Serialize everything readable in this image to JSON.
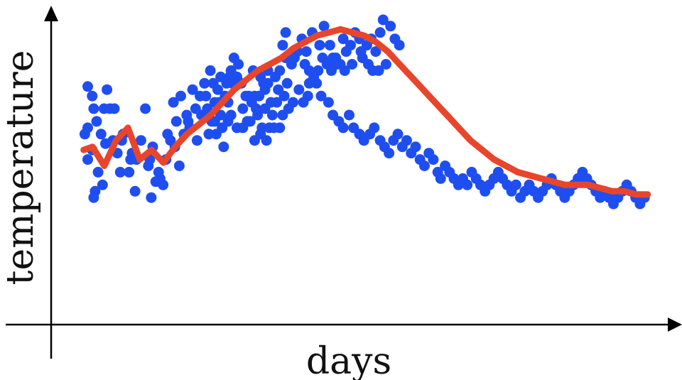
{
  "chart_data": {
    "type": "scatter",
    "xlabel": "days",
    "ylabel": "temperature",
    "grid": false,
    "legend": "none",
    "colors": {
      "points": "#1f4ef0",
      "smoothed": "#e8452b",
      "axes": "#000000"
    },
    "series": [
      {
        "kind": "scatter",
        "points": [
          [
            12.4,
            62
          ],
          [
            11.4,
            60
          ],
          [
            13.9,
            55
          ],
          [
            12.4,
            52
          ],
          [
            14.4,
            68
          ],
          [
            17.9,
            68
          ],
          [
            12.4,
            75
          ],
          [
            13.9,
            72
          ],
          [
            16.9,
            60
          ],
          [
            18.4,
            57
          ],
          [
            15.9,
            48
          ],
          [
            14.9,
            42
          ],
          [
            17.4,
            44
          ],
          [
            14.4,
            40
          ],
          [
            15.4,
            64
          ],
          [
            18.9,
            74
          ],
          [
            19.9,
            68
          ],
          [
            20.9,
            58
          ],
          [
            21.4,
            68
          ],
          [
            22.4,
            54
          ],
          [
            23.4,
            48
          ],
          [
            23.9,
            58
          ],
          [
            26.9,
            52
          ],
          [
            24.4,
            60
          ],
          [
            26.4,
            48
          ],
          [
            27.4,
            54
          ],
          [
            28.4,
            42
          ],
          [
            28.9,
            52
          ],
          [
            30.4,
            58
          ],
          [
            32.9,
            50
          ],
          [
            34.4,
            56
          ],
          [
            36.4,
            48
          ],
          [
            38.9,
            52
          ],
          [
            40.4,
            58
          ],
          [
            43.4,
            50
          ],
          [
            37.9,
            44
          ],
          [
            33.9,
            40
          ],
          [
            33.4,
            52
          ],
          [
            31.9,
            68
          ],
          [
            36.9,
            46
          ],
          [
            35.4,
            45
          ],
          [
            39.4,
            60
          ],
          [
            41.9,
            56
          ],
          [
            46.4,
            64
          ],
          [
            44.9,
            60
          ],
          [
            42.4,
            64
          ],
          [
            41.4,
            70
          ],
          [
            43.9,
            72
          ],
          [
            47.9,
            74
          ],
          [
            46.9,
            62
          ],
          [
            45.9,
            66
          ],
          [
            48.9,
            68
          ],
          [
            49.4,
            58
          ],
          [
            50.9,
            66
          ],
          [
            52.4,
            72
          ],
          [
            54.4,
            64
          ],
          [
            53.4,
            60
          ],
          [
            55.9,
            60
          ],
          [
            57.9,
            62
          ],
          [
            59.9,
            70
          ],
          [
            58.4,
            56
          ],
          [
            56.9,
            70
          ],
          [
            61.4,
            76
          ],
          [
            60.4,
            78
          ],
          [
            58.9,
            72
          ],
          [
            55.4,
            70
          ],
          [
            63.4,
            82
          ],
          [
            64.9,
            68
          ],
          [
            66.9,
            72
          ],
          [
            67.4,
            64
          ],
          [
            69.4,
            68
          ],
          [
            71.9,
            76
          ],
          [
            73.4,
            80
          ],
          [
            68.4,
            80
          ],
          [
            70.4,
            72
          ],
          [
            71.4,
            62
          ],
          [
            74.4,
            70
          ],
          [
            76.9,
            74
          ],
          [
            72.4,
            68
          ],
          [
            75.4,
            62
          ],
          [
            78.9,
            72
          ],
          [
            77.4,
            62
          ],
          [
            79.9,
            76
          ],
          [
            79.4,
            92
          ],
          [
            78.4,
            88
          ],
          [
            82.4,
            84
          ],
          [
            84.9,
            90
          ],
          [
            86.4,
            86
          ],
          [
            88.4,
            92
          ],
          [
            90.9,
            88
          ],
          [
            92.4,
            94
          ],
          [
            94.4,
            88
          ],
          [
            95.4,
            84
          ],
          [
            96.9,
            82
          ],
          [
            98.9,
            90
          ],
          [
            99.9,
            86
          ],
          [
            101.4,
            88
          ],
          [
            102.9,
            92
          ],
          [
            104.4,
            90
          ],
          [
            105.4,
            84
          ],
          [
            106.9,
            88
          ],
          [
            108.4,
            90
          ],
          [
            109.9,
            86
          ],
          [
            111.4,
            92
          ],
          [
            112.4,
            96
          ],
          [
            114.9,
            94
          ],
          [
            116.4,
            90
          ],
          [
            117.9,
            88
          ],
          [
            113.4,
            82
          ],
          [
            110.9,
            80
          ],
          [
            108.9,
            80
          ],
          [
            107.4,
            82
          ],
          [
            104.9,
            86
          ],
          [
            101.9,
            82
          ],
          [
            99.4,
            80
          ],
          [
            97.9,
            82
          ],
          [
            96.4,
            84
          ],
          [
            94.9,
            80
          ],
          [
            93.4,
            82
          ],
          [
            91.9,
            84
          ],
          [
            90.4,
            80
          ],
          [
            88.9,
            78
          ],
          [
            87.4,
            76
          ],
          [
            86.9,
            72
          ],
          [
            85.4,
            70
          ],
          [
            83.9,
            74
          ],
          [
            81.9,
            70
          ],
          [
            80.4,
            68
          ],
          [
            78.4,
            66
          ],
          [
            76.4,
            70
          ],
          [
            74.9,
            66
          ],
          [
            73.9,
            62
          ],
          [
            72.9,
            58
          ],
          [
            70.9,
            60
          ],
          [
            69.9,
            66
          ],
          [
            68.9,
            58
          ],
          [
            67.9,
            70
          ],
          [
            65.9,
            72
          ],
          [
            64.4,
            76
          ],
          [
            62.9,
            78
          ],
          [
            61.9,
            84
          ],
          [
            60.9,
            80
          ],
          [
            59.4,
            76
          ],
          [
            57.4,
            78
          ],
          [
            56.4,
            74
          ],
          [
            54.9,
            76
          ],
          [
            53.9,
            80
          ],
          [
            51.9,
            76
          ],
          [
            50.4,
            72
          ],
          [
            52.9,
            68
          ],
          [
            55.4,
            64
          ],
          [
            57.4,
            66
          ],
          [
            59.9,
            64
          ],
          [
            60.9,
            66
          ],
          [
            62.9,
            62
          ],
          [
            64.9,
            62
          ],
          [
            66.4,
            64
          ],
          [
            68.9,
            72
          ],
          [
            70.9,
            78
          ],
          [
            72.4,
            74
          ],
          [
            73.4,
            76
          ],
          [
            75.9,
            78
          ],
          [
            77.4,
            80
          ],
          [
            79.4,
            84
          ],
          [
            81.4,
            82
          ],
          [
            83.4,
            86
          ],
          [
            85.9,
            82
          ],
          [
            87.4,
            80
          ],
          [
            89.9,
            76
          ],
          [
            91.4,
            72
          ],
          [
            93.9,
            70
          ],
          [
            95.4,
            66
          ],
          [
            97.4,
            64
          ],
          [
            98.9,
            62
          ],
          [
            100.9,
            66
          ],
          [
            102.4,
            62
          ],
          [
            104.4,
            60
          ],
          [
            105.9,
            58
          ],
          [
            107.9,
            60
          ],
          [
            109.4,
            62
          ],
          [
            111.4,
            58
          ],
          [
            112.9,
            56
          ],
          [
            114.4,
            54
          ],
          [
            115.9,
            58
          ],
          [
            117.4,
            60
          ],
          [
            118.9,
            56
          ],
          [
            120.4,
            58
          ],
          [
            121.9,
            54
          ],
          [
            123.4,
            56
          ],
          [
            124.9,
            52
          ],
          [
            126.4,
            50
          ],
          [
            127.9,
            54
          ],
          [
            129.4,
            52
          ],
          [
            130.9,
            48
          ],
          [
            131.9,
            46
          ],
          [
            133.4,
            50
          ],
          [
            134.9,
            48
          ],
          [
            136.4,
            46
          ],
          [
            137.9,
            44
          ],
          [
            139.4,
            46
          ],
          [
            140.9,
            44
          ],
          [
            142.4,
            48
          ],
          [
            143.9,
            46
          ],
          [
            145.4,
            44
          ],
          [
            146.9,
            42
          ],
          [
            148.4,
            44
          ],
          [
            149.9,
            46
          ],
          [
            151.4,
            48
          ],
          [
            152.9,
            46
          ],
          [
            154.4,
            44
          ],
          [
            155.9,
            42
          ],
          [
            157.4,
            44
          ],
          [
            158.9,
            40
          ],
          [
            160.4,
            42
          ],
          [
            161.9,
            44
          ],
          [
            163.4,
            42
          ],
          [
            164.9,
            40
          ],
          [
            166.4,
            42
          ],
          [
            167.9,
            44
          ],
          [
            169.4,
            46
          ],
          [
            170.9,
            44
          ],
          [
            172.4,
            42
          ],
          [
            173.9,
            40
          ],
          [
            175.4,
            42
          ],
          [
            176.9,
            44
          ],
          [
            178.4,
            46
          ],
          [
            179.9,
            48
          ],
          [
            181.4,
            46
          ],
          [
            182.9,
            44
          ],
          [
            184.4,
            42
          ],
          [
            185.9,
            40
          ],
          [
            187.4,
            42
          ],
          [
            188.9,
            40
          ],
          [
            190.4,
            38
          ],
          [
            191.9,
            40
          ],
          [
            193.4,
            42
          ],
          [
            194.9,
            44
          ],
          [
            196.4,
            42
          ],
          [
            197.9,
            40
          ],
          [
            199.4,
            38
          ],
          [
            200.9,
            40
          ]
        ]
      },
      {
        "kind": "line",
        "points": [
          [
            11,
            55
          ],
          [
            14,
            56
          ],
          [
            18,
            50
          ],
          [
            22,
            58
          ],
          [
            26,
            62
          ],
          [
            30,
            52
          ],
          [
            34,
            55
          ],
          [
            38,
            51
          ],
          [
            42,
            56
          ],
          [
            46,
            60
          ],
          [
            50,
            63
          ],
          [
            54,
            66
          ],
          [
            58,
            70
          ],
          [
            62,
            74
          ],
          [
            66,
            77
          ],
          [
            70,
            80
          ],
          [
            74,
            82
          ],
          [
            78,
            84
          ],
          [
            82,
            87
          ],
          [
            86,
            89
          ],
          [
            90,
            91
          ],
          [
            94,
            92
          ],
          [
            98,
            93
          ],
          [
            102,
            92
          ],
          [
            106,
            91
          ],
          [
            110,
            89
          ],
          [
            114,
            86
          ],
          [
            118,
            82
          ],
          [
            122,
            78
          ],
          [
            126,
            74
          ],
          [
            130,
            70
          ],
          [
            134,
            66
          ],
          [
            138,
            62
          ],
          [
            142,
            58
          ],
          [
            146,
            55
          ],
          [
            150,
            52
          ],
          [
            154,
            50
          ],
          [
            158,
            48
          ],
          [
            162,
            47
          ],
          [
            166,
            46
          ],
          [
            170,
            45
          ],
          [
            174,
            44
          ],
          [
            178,
            44
          ],
          [
            182,
            44
          ],
          [
            186,
            43
          ],
          [
            190,
            42
          ],
          [
            194,
            42
          ],
          [
            198,
            41
          ],
          [
            202,
            41
          ]
        ]
      }
    ]
  }
}
